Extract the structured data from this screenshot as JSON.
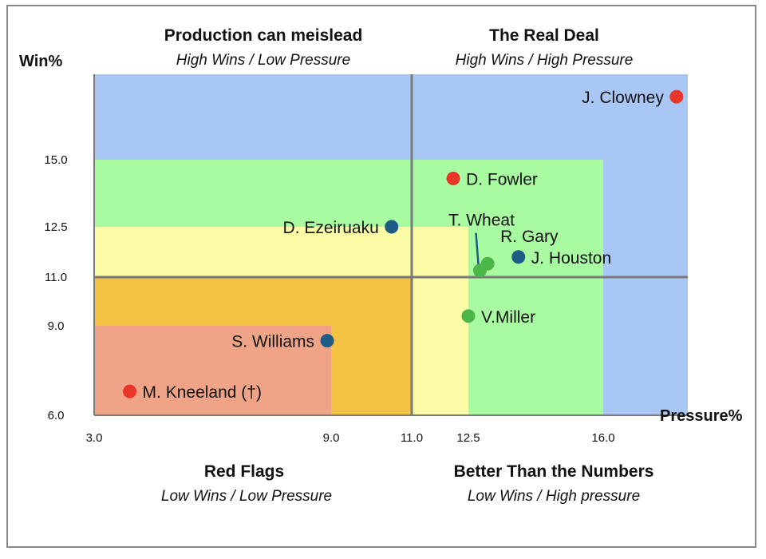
{
  "chart_data": {
    "type": "scatter",
    "xlabel": "Pressure%",
    "ylabel": "Win%",
    "xlim": [
      3.0,
      19.0
    ],
    "ylim": [
      6.0,
      18.8
    ],
    "x_ticks": [
      {
        "value": 3.0,
        "label": "3.0"
      },
      {
        "value": 9.0,
        "label": "9.0"
      },
      {
        "value": 11.0,
        "label": "11.0"
      },
      {
        "value": 12.5,
        "label": "12.5"
      },
      {
        "value": 16.0,
        "label": "16.0"
      }
    ],
    "y_ticks": [
      {
        "value": 6.0,
        "label": "6.0"
      },
      {
        "value": 9.0,
        "label": "9.0"
      },
      {
        "value": 11.0,
        "label": "11.0"
      },
      {
        "value": 12.5,
        "label": "12.5"
      },
      {
        "value": 15.0,
        "label": "15.0"
      }
    ],
    "quadrant_dividers": {
      "x": 11.0,
      "y": 11.0
    },
    "bands": [
      {
        "name": "blue",
        "color": "#a9c7f5",
        "x": [
          3.0,
          19.0
        ],
        "y": [
          6.0,
          18.8
        ]
      },
      {
        "name": "green",
        "color": "#a8fba0",
        "x": [
          3.0,
          16.0
        ],
        "y": [
          6.0,
          15.0
        ]
      },
      {
        "name": "yellow",
        "color": "#fcfca7",
        "x": [
          3.0,
          12.5
        ],
        "y": [
          6.0,
          12.5
        ]
      },
      {
        "name": "orange",
        "color": "#f3c243",
        "x": [
          3.0,
          11.0
        ],
        "y": [
          6.0,
          11.0
        ]
      },
      {
        "name": "red",
        "color": "#f0a487",
        "x": [
          3.0,
          9.0
        ],
        "y": [
          6.0,
          9.0
        ]
      }
    ],
    "quadrants": [
      {
        "position": "top-left",
        "title": "Production can meislead",
        "subtitle": "High Wins / Low Pressure"
      },
      {
        "position": "top-right",
        "title": "The Real Deal",
        "subtitle": "High Wins / High Pressure"
      },
      {
        "position": "bottom-left",
        "title": "Red Flags",
        "subtitle": "Low Wins / Low Pressure"
      },
      {
        "position": "bottom-right",
        "title": "Better Than the Numbers",
        "subtitle": "Low Wins / High pressure"
      }
    ],
    "points": [
      {
        "label": "J. Clowney",
        "x": 18.6,
        "y": 17.8,
        "color": "#e8372a",
        "label_side": "left"
      },
      {
        "label": "D. Fowler",
        "x": 12.1,
        "y": 14.3,
        "color": "#e8372a",
        "label_side": "right"
      },
      {
        "label": "D. Ezeiruaku",
        "x": 10.5,
        "y": 12.5,
        "color": "#1e5b85",
        "label_side": "left"
      },
      {
        "label": "T. Wheat",
        "x": 12.8,
        "y": 11.2,
        "color": "#4cb748",
        "label_side": "above"
      },
      {
        "label": "R. Gary",
        "x": 13.0,
        "y": 11.4,
        "color": "#4cb748",
        "label_side": "above-right"
      },
      {
        "label": "J. Houston",
        "x": 13.8,
        "y": 11.6,
        "color": "#1e5b85",
        "label_side": "right"
      },
      {
        "label": "V.Miller",
        "x": 12.5,
        "y": 9.4,
        "color": "#4cb748",
        "label_side": "right"
      },
      {
        "label": "S. Williams",
        "x": 8.9,
        "y": 8.5,
        "color": "#1e5b85",
        "label_side": "left"
      },
      {
        "label": "M. Kneeland (†)",
        "x": 3.9,
        "y": 6.8,
        "color": "#e8372a",
        "label_side": "right"
      }
    ]
  }
}
